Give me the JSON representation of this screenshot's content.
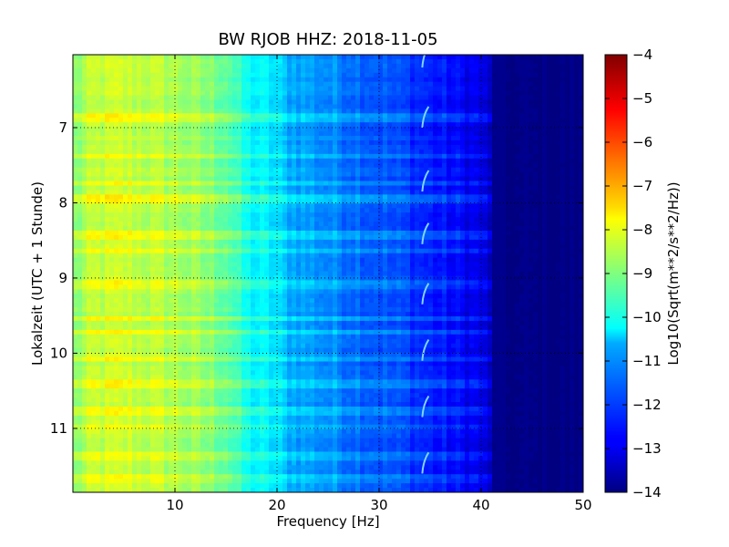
{
  "chart_data": {
    "type": "heatmap",
    "title": "BW RJOB HHZ: 2018-11-05",
    "xlabel": "Frequency [Hz]",
    "ylabel": "Lokalzeit (UTC + 1 Stunde)",
    "xlim": [
      0,
      50
    ],
    "ylim": [
      11.85,
      6.03
    ],
    "x_ticks": [
      10,
      20,
      30,
      40,
      50
    ],
    "x_tick_labels": [
      "10",
      "20",
      "30",
      "40",
      "50"
    ],
    "y_ticks": [
      7,
      8,
      9,
      10,
      11
    ],
    "y_tick_labels": [
      "7",
      "8",
      "9",
      "10",
      "11"
    ],
    "grid": true,
    "colorbar": {
      "label": "Log10(Sqrt(m**2/s**2/Hz))",
      "range": [
        -14,
        -4
      ],
      "ticks": [
        -4,
        -5,
        -6,
        -7,
        -8,
        -9,
        -10,
        -11,
        -12,
        -13,
        -14
      ],
      "tick_labels": [
        "−4",
        "−5",
        "−6",
        "−7",
        "−8",
        "−9",
        "−10",
        "−11",
        "−12",
        "−13",
        "−14"
      ],
      "colormap": "jet"
    },
    "spectrum_profile": {
      "frequency_hz": [
        0,
        2,
        5,
        10,
        15,
        17,
        20,
        21,
        25,
        30,
        33,
        35,
        38,
        40,
        41,
        42,
        50
      ],
      "level": [
        -9.0,
        -8.4,
        -8.3,
        -8.6,
        -9.2,
        -10.2,
        -10.6,
        -11.0,
        -11.4,
        -11.9,
        -12.2,
        -12.5,
        -12.8,
        -13.0,
        -13.6,
        -14.0,
        -14.0
      ]
    },
    "band_times": [
      6.85,
      7.35,
      7.7,
      7.9,
      8.4,
      8.6,
      9.05,
      9.5,
      9.7,
      10.05,
      10.4,
      10.75,
      10.95,
      11.35,
      11.65
    ],
    "arc_feature": {
      "frequency_hz": 34.5,
      "times": [
        6.2,
        7.0,
        7.85,
        8.55,
        9.35,
        10.1,
        10.85,
        11.6
      ]
    }
  }
}
